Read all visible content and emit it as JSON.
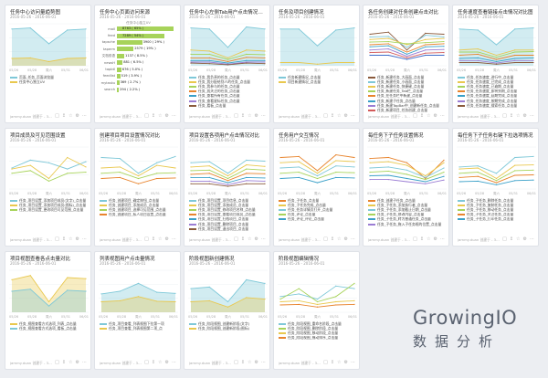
{
  "common": {
    "date_range": "2016-05-26 - 2016-06-01",
    "author": "jammy.duan 创建于 - 3…",
    "x_labels": [
      "05/26",
      "05/28",
      "周六",
      "05/31",
      "06/01"
    ]
  },
  "footer_icons": [
    "chat-icon",
    "share-icon",
    "star-icon",
    "settings-icon",
    "more-icon"
  ],
  "logo": {
    "text": "GrowingIO",
    "subtitle": "数据分析"
  },
  "cards": [
    {
      "title": "任务中心访问量趋势图",
      "type": "area",
      "series": [
        {
          "name": "页面_任务_页面浏览量",
          "color": "#7ec8d8",
          "fill": true,
          "values": [
            70,
            72,
            42,
            68,
            70
          ]
        },
        {
          "name": "任务中心独立UV",
          "color": "#e9c84e",
          "fill": true,
          "values": [
            14,
            15,
            8,
            14,
            15
          ]
        }
      ]
    },
    {
      "title": "任务中心页面访问来源",
      "type": "hbar",
      "subtitle": "任务中心独立UV",
      "bars": [
        {
          "name": "mail",
          "value": 8763,
          "label": "8763 ( 65% )"
        },
        {
          "name": "feed",
          "value": 7289,
          "label": "7289 ( 54% )"
        },
        {
          "name": "tapsche",
          "value": 3900,
          "label": "3900 ( 29% )"
        },
        {
          "name": "taperm",
          "value": 2579,
          "label": "2579 ( 19% )"
        },
        {
          "name": "文档双语",
          "value": 1137,
          "label": "1137 ( 8.5% )"
        },
        {
          "name": "newsH",
          "value": 881,
          "label": "881 ( 6.5% )"
        },
        {
          "name": "tapbtl",
          "value": 676,
          "label": "676 ( 5.0% )"
        },
        {
          "name": "feedlist",
          "value": 519,
          "label": "519 ( 3.9% )"
        },
        {
          "name": "mytasku",
          "value": 369,
          "label": "369 ( 2.7% )"
        },
        {
          "name": "search",
          "value": 294,
          "label": "294 ( 2.2% )"
        }
      ]
    },
    {
      "title": "任务中心左侧Tab用户点击情况对比",
      "type": "line",
      "series": [
        {
          "name": "任务_我负责的任务_点击量",
          "color": "#7ec8d8",
          "fill": true,
          "values": [
            72,
            70,
            35,
            74,
            70
          ]
        },
        {
          "name": "任务_我分配给别人的任务_点击量",
          "color": "#e9c84e",
          "values": [
            30,
            28,
            15,
            30,
            28
          ]
        },
        {
          "name": "任务_我参与的任务_点击量",
          "color": "#a7d35a",
          "values": [
            22,
            22,
            12,
            22,
            21
          ]
        },
        {
          "name": "任务_我关注的任务_点击量",
          "color": "#e8842d",
          "values": [
            15,
            15,
            8,
            16,
            15
          ]
        },
        {
          "name": "任务_查看所有任务_点击量",
          "color": "#3aa0c8",
          "values": [
            10,
            10,
            5,
            10,
            10
          ]
        },
        {
          "name": "任务_查看星标任务_点击量",
          "color": "#9b7dd4",
          "values": [
            7,
            7,
            3,
            7,
            7
          ]
        },
        {
          "name": "任务_看板_点击量",
          "color": "#8a5a3c",
          "values": [
            5,
            4,
            2,
            5,
            4
          ]
        }
      ]
    },
    {
      "title": "任务及项目创建情况",
      "type": "area",
      "series": [
        {
          "name": "任务新建情况_点击量",
          "color": "#7ec8d8",
          "fill": true,
          "values": [
            70,
            70,
            38,
            68,
            72
          ]
        },
        {
          "name": "项目新建情况_点击量",
          "color": "#e9c84e",
          "values": [
            6,
            6,
            3,
            6,
            6
          ]
        }
      ]
    },
    {
      "title": "各任务创建对任务创建点击对比",
      "type": "line",
      "series": [
        {
          "name": "任务_新建任务_大画面_点击量",
          "color": "#8a5a3c",
          "values": [
            60,
            64,
            30,
            62,
            60
          ]
        },
        {
          "name": "任务_新建任务_小画面_点击量",
          "color": "#7ec8d8",
          "values": [
            55,
            56,
            35,
            58,
            55
          ]
        },
        {
          "name": "任务_新建任务_快捷键_点击量",
          "color": "#e9c84e",
          "values": [
            50,
            52,
            40,
            50,
            52
          ]
        },
        {
          "name": "任务_新建任务_Tab栏_点击量",
          "color": "#a7d35a",
          "values": [
            45,
            46,
            42,
            44,
            46
          ]
        },
        {
          "name": "任务_在任务栏中新建_点击量",
          "color": "#e8842d",
          "values": [
            40,
            42,
            26,
            40,
            42
          ]
        },
        {
          "name": "任务_新建子任务_点击量",
          "color": "#3aa0c8",
          "values": [
            36,
            38,
            22,
            36,
            37
          ]
        },
        {
          "name": "任务_新建TapBar中_创建新任务_点击量",
          "color": "#9b7dd4",
          "values": [
            30,
            32,
            18,
            30,
            31
          ]
        },
        {
          "name": "任务_新建项目_任务创建_点击量",
          "color": "#d35a5a",
          "values": [
            25,
            26,
            15,
            24,
            25
          ]
        },
        {
          "name": "1/2",
          "color": "#3c6ac8",
          "values": [
            20,
            20,
            12,
            20,
            20
          ]
        }
      ]
    },
    {
      "title": "任务速度查看链接点击情况对比图",
      "type": "line",
      "series": [
        {
          "name": "任务_任务速度_进行中_点击量",
          "color": "#7ec8d8",
          "fill": true,
          "values": [
            70,
            68,
            40,
            70,
            72
          ]
        },
        {
          "name": "任务_任务速度_已完成_点击量",
          "color": "#e9c84e",
          "values": [
            30,
            32,
            20,
            30,
            30
          ]
        },
        {
          "name": "任务_任务速度_已逾期_点击量",
          "color": "#a7d35a",
          "values": [
            26,
            26,
            16,
            26,
            27
          ]
        },
        {
          "name": "任务_任务速度_即将到期_点击量",
          "color": "#e8842d",
          "values": [
            20,
            22,
            12,
            20,
            20
          ]
        },
        {
          "name": "任务_任务速度_延期完成_点击量",
          "color": "#3aa0c8",
          "values": [
            14,
            15,
            8,
            14,
            15
          ]
        },
        {
          "name": "任务_任务速度_按期完成_点击量",
          "color": "#9b7dd4",
          "values": [
            10,
            10,
            5,
            10,
            10
          ]
        },
        {
          "name": "任务_任务速度_搜索任务_点击量",
          "color": "#8a5a3c",
          "values": [
            6,
            6,
            3,
            6,
            6
          ]
        }
      ]
    },
    {
      "title": "项目成员及可见范围设置",
      "type": "line",
      "series": [
        {
          "name": "任务_项目设置_添加项目成员(文字)_点击量",
          "color": "#7ec8d8",
          "values": [
            40,
            55,
            50,
            38,
            52
          ]
        },
        {
          "name": "任务_项目设置_添加项目成员(图标)_点击量",
          "color": "#e9c84e",
          "values": [
            38,
            45,
            20,
            60,
            42
          ]
        },
        {
          "name": "任务_项目设置_更改项目可见范围_点击量",
          "color": "#a7d35a",
          "values": [
            30,
            35,
            15,
            30,
            32
          ]
        }
      ]
    },
    {
      "title": "创建项目项目设置情况对比",
      "type": "line",
      "series": [
        {
          "name": "任务_创建项目_确定按钮_点击量",
          "color": "#7ec8d8",
          "values": [
            60,
            58,
            30,
            50,
            62
          ]
        },
        {
          "name": "任务_创建项目_添加成员_点击量",
          "color": "#e9c84e",
          "values": [
            40,
            42,
            25,
            45,
            40
          ]
        },
        {
          "name": "任务_创建项目_选择可见范围_点击量",
          "color": "#a7d35a",
          "values": [
            30,
            32,
            20,
            30,
            31
          ]
        },
        {
          "name": "任务_创建项目_私人项目设置_点击量",
          "color": "#e8842d",
          "values": [
            20,
            22,
            10,
            20,
            21
          ]
        }
      ]
    },
    {
      "title": "项目设置各项用户点击情况对比",
      "type": "line",
      "series": [
        {
          "name": "任务_项目设置_项目信息_点击量",
          "color": "#7ec8d8",
          "values": [
            50,
            52,
            30,
            55,
            53
          ]
        },
        {
          "name": "任务_项目设置_添加成员_点击量",
          "color": "#e9c84e",
          "values": [
            42,
            44,
            25,
            46,
            43
          ]
        },
        {
          "name": "任务_项目设置_修改项目名称_点击量",
          "color": "#a7d35a",
          "values": [
            35,
            36,
            20,
            38,
            36
          ]
        },
        {
          "name": "任务_项目设置_查看项目成员_点击量",
          "color": "#e8842d",
          "values": [
            28,
            30,
            16,
            30,
            29
          ]
        },
        {
          "name": "任务_项目设置_归档项目_点击量",
          "color": "#3aa0c8",
          "values": [
            22,
            22,
            12,
            22,
            21
          ]
        },
        {
          "name": "任务_项目设置_删除项目_点击量",
          "color": "#9b7dd4",
          "values": [
            15,
            15,
            8,
            16,
            15
          ]
        },
        {
          "name": "任务_项目设置_退出项目_点击量",
          "color": "#8a5a3c",
          "values": [
            10,
            10,
            5,
            10,
            10
          ]
        }
      ]
    },
    {
      "title": "任务用户交互情况",
      "type": "line",
      "series": [
        {
          "name": "任务_子任务_点击量",
          "color": "#e8842d",
          "values": [
            60,
            62,
            35,
            65,
            60
          ]
        },
        {
          "name": "任务_子任务完成_点击量",
          "color": "#e9c84e",
          "values": [
            50,
            52,
            30,
            54,
            52
          ]
        },
        {
          "name": "任务_任务详情页打开_点击量",
          "color": "#7ec8d8",
          "values": [
            40,
            42,
            25,
            44,
            42
          ]
        },
        {
          "name": "任务_评论_点击量",
          "color": "#a7d35a",
          "values": [
            30,
            32,
            20,
            32,
            31
          ]
        },
        {
          "name": "任务_评论_评论_点击量",
          "color": "#3aa0c8",
          "values": [
            20,
            22,
            12,
            22,
            21
          ]
        }
      ]
    },
    {
      "title": "每任务下子任务设置情况",
      "type": "line",
      "series": [
        {
          "name": "任务_创建子任务_点击量",
          "color": "#e8842d",
          "values": [
            58,
            60,
            50,
            20,
            55
          ]
        },
        {
          "name": "任务_子任务_添加执行者_点击量",
          "color": "#e9c84e",
          "values": [
            50,
            52,
            45,
            25,
            50
          ]
        },
        {
          "name": "任务_子任务_添加截止日期_点击量",
          "color": "#7ec8d8",
          "values": [
            40,
            42,
            36,
            22,
            40
          ]
        },
        {
          "name": "任务_子任务_修改内容_点击量",
          "color": "#a7d35a",
          "values": [
            32,
            34,
            28,
            18,
            32
          ]
        },
        {
          "name": "任务_子任务_转为普通任务_点击量",
          "color": "#3aa0c8",
          "values": [
            25,
            26,
            20,
            14,
            24
          ]
        },
        {
          "name": "任务_子任务_拖入子任务框的位置_点击量",
          "color": "#9b7dd4",
          "values": [
            18,
            18,
            14,
            10,
            17
          ]
        }
      ]
    },
    {
      "title": "每任务下子任务右键下拉选项情况",
      "type": "line",
      "series": [
        {
          "name": "任务_子任务_删除任务_点击量",
          "color": "#7ec8d8",
          "values": [
            42,
            44,
            30,
            60,
            62
          ]
        },
        {
          "name": "任务_子任务_复制任务_点击量",
          "color": "#e9c84e",
          "values": [
            38,
            40,
            20,
            45,
            46
          ]
        },
        {
          "name": "任务_子任务_移动任务_点击量",
          "color": "#a7d35a",
          "values": [
            30,
            32,
            16,
            35,
            36
          ]
        },
        {
          "name": "任务_子任务_关注任务_点击量",
          "color": "#e8842d",
          "values": [
            22,
            24,
            12,
            26,
            27
          ]
        },
        {
          "name": "任务_子任务_打印任务_点击量",
          "color": "#3aa0c8",
          "values": [
            14,
            15,
            8,
            16,
            17
          ]
        }
      ]
    },
    {
      "title": "项目视图查看各点击量对比",
      "type": "area",
      "series": [
        {
          "name": "任务_视图查看方式选项_列表_点击量",
          "color": "#e9c84e",
          "fill": true,
          "values": [
            62,
            70,
            20,
            66,
            64
          ]
        },
        {
          "name": "任务_视图查看方式选项_看板_点击量",
          "color": "#7ec8d8",
          "fill": true,
          "values": [
            40,
            44,
            12,
            42,
            40
          ]
        }
      ]
    },
    {
      "title": "列表视图用户点击量情况",
      "type": "area",
      "series": [
        {
          "name": "任务_项目查看_列表视图下拉第一项",
          "color": "#7ec8d8",
          "fill": true,
          "values": [
            35,
            40,
            55,
            38,
            36
          ]
        },
        {
          "name": "任务_项目查看_列表视图第二项_点",
          "color": "#e9c84e",
          "fill": true,
          "values": [
            20,
            22,
            30,
            21,
            20
          ]
        }
      ]
    },
    {
      "title": "阶段视图新创建情况",
      "type": "area",
      "series": [
        {
          "name": "任务_阶段视图_创建新阶段(文字)",
          "color": "#7ec8d8",
          "fill": true,
          "values": [
            45,
            48,
            20,
            62,
            55
          ]
        },
        {
          "name": "任务_阶段视图_创建新阶段(图标)",
          "color": "#e9c84e",
          "fill": true,
          "values": [
            20,
            22,
            10,
            28,
            25
          ]
        }
      ]
    },
    {
      "title": "阶段视图编辑情况",
      "type": "line",
      "series": [
        {
          "name": "任务_阶段视图_重命名阶段_点击量",
          "color": "#7ec8d8",
          "values": [
            30,
            35,
            25,
            50,
            45
          ]
        },
        {
          "name": "任务_阶段视图_删除阶段_点击量",
          "color": "#a7d35a",
          "values": [
            25,
            45,
            20,
            30,
            55
          ]
        },
        {
          "name": "任务_阶段视图_移动阶段_点击量",
          "color": "#e9c84e",
          "values": [
            20,
            22,
            15,
            20,
            22
          ]
        },
        {
          "name": "任务_阶段视图_拖动排序_点击量",
          "color": "#e8842d",
          "values": [
            14,
            15,
            10,
            14,
            15
          ]
        }
      ]
    }
  ]
}
